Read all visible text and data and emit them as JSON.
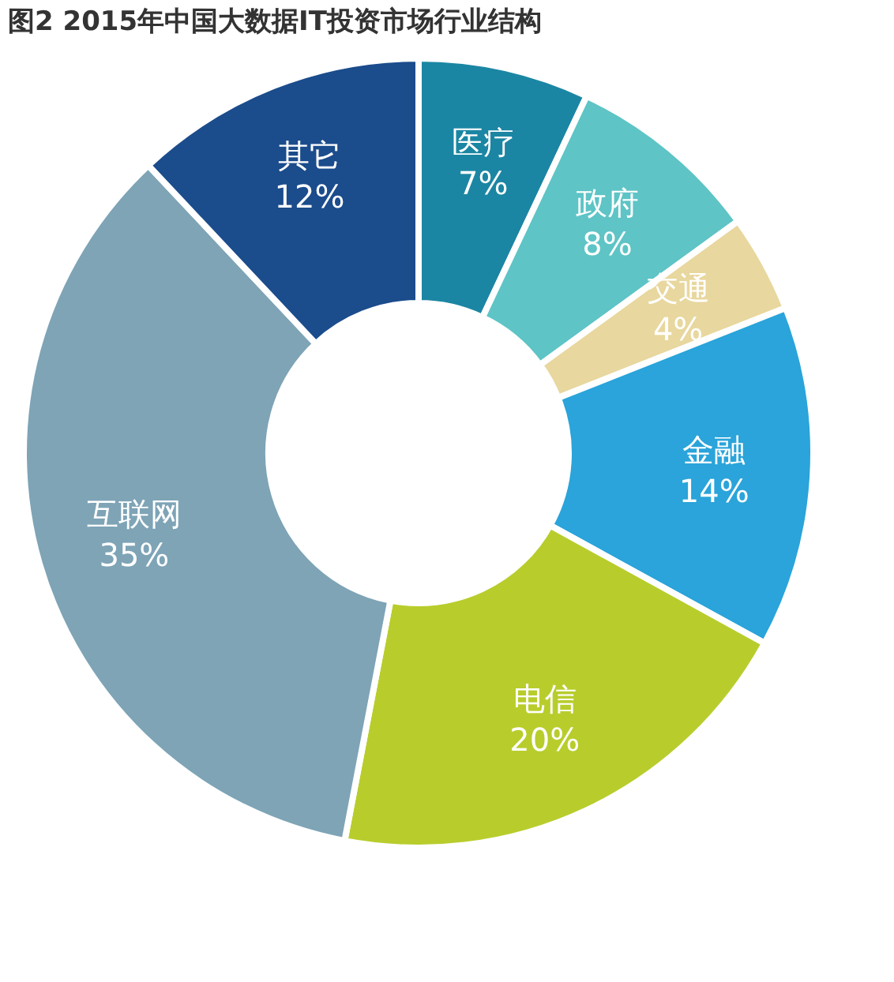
{
  "chart_data": {
    "type": "donut",
    "title": "图2  2015年中国大数据IT投资市场行业结构",
    "categories": [
      "医疗",
      "政府",
      "交通",
      "金融",
      "电信",
      "互联网",
      "其它"
    ],
    "values": [
      7,
      8,
      4,
      14,
      20,
      35,
      12
    ],
    "value_labels": [
      "7%",
      "8%",
      "4%",
      "14%",
      "20%",
      "35%",
      "12%"
    ],
    "colors": [
      "#1b86a3",
      "#5ec4c6",
      "#e8d79e",
      "#2aa4da",
      "#b8cd2c",
      "#7ea4b6",
      "#1b4c8c"
    ],
    "legend": false
  }
}
